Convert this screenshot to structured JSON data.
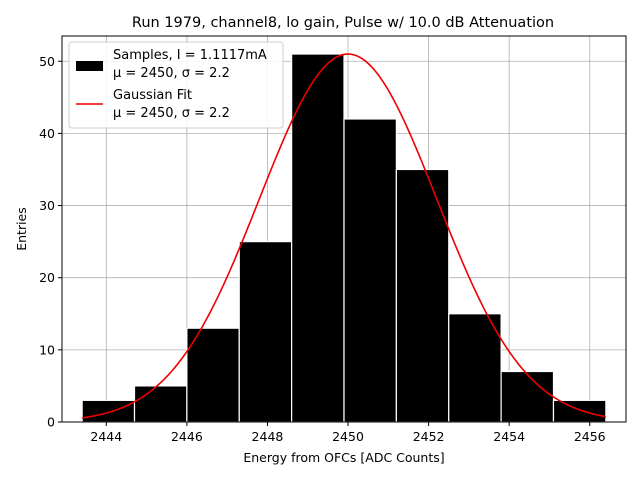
{
  "chart_data": {
    "type": "bar",
    "title": "Run 1979, channel8, lo gain, Pulse w/ 10.0 dB Attenuation",
    "xlabel": "Energy from OFCs [ADC Counts]",
    "ylabel": "Entries",
    "xlim": [
      2442.9,
      2456.9
    ],
    "ylim": [
      0,
      53.5
    ],
    "grid": true,
    "legend_position": "top-left",
    "x_ticks": [
      "2444",
      "2446",
      "2448",
      "2450",
      "2452",
      "2454",
      "2456"
    ],
    "y_ticks": [
      "0",
      "10",
      "20",
      "30",
      "40",
      "50"
    ],
    "histogram": {
      "name": "Samples, I = 1.1117mA",
      "name_line2": "μ = 2450, σ = 2.2",
      "color": "#000000",
      "edge_color": "#ffffff",
      "bin_edges": [
        2443.4,
        2444.7,
        2446.0,
        2447.3,
        2448.6,
        2449.9,
        2451.2,
        2452.5,
        2453.8,
        2455.1,
        2456.4
      ],
      "values": [
        3,
        5,
        13,
        25,
        51,
        42,
        35,
        15,
        7,
        3
      ]
    },
    "fit": {
      "name": "Gaussian Fit",
      "name_line2": "μ = 2450, σ = 2.2",
      "color": "#ee0000",
      "amplitude": 51,
      "mu": 2450.0,
      "sigma": 2.2
    }
  }
}
